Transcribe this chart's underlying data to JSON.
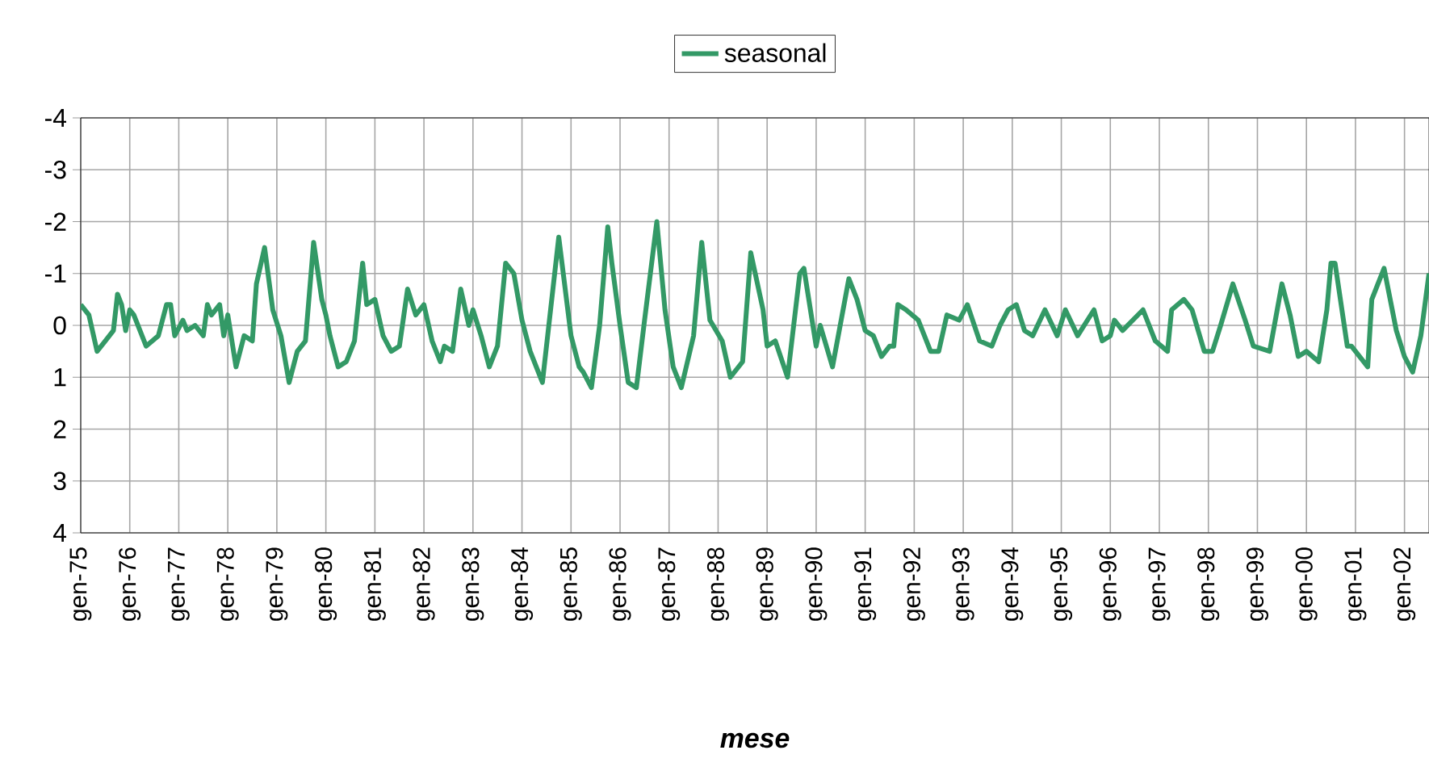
{
  "chart_data": {
    "type": "line",
    "xlabel": "mese",
    "x": [
      "1975-01",
      "1975-03",
      "1975-05",
      "1975-07",
      "1975-09",
      "1975-10",
      "1975-11",
      "1975-12",
      "1976-01",
      "1976-02",
      "1976-05",
      "1976-08",
      "1976-10",
      "1976-11",
      "1976-12",
      "1977-02",
      "1977-03",
      "1977-05",
      "1977-07",
      "1977-08",
      "1977-09",
      "1977-11",
      "1977-12",
      "1978-01",
      "1978-03",
      "1978-05",
      "1978-07",
      "1978-08",
      "1978-10",
      "1978-12",
      "1979-02",
      "1979-04",
      "1979-06",
      "1979-08",
      "1979-10",
      "1979-12",
      "1980-01",
      "1980-02",
      "1980-04",
      "1980-06",
      "1980-08",
      "1980-10",
      "1980-11",
      "1981-01",
      "1981-03",
      "1981-05",
      "1981-07",
      "1981-09",
      "1981-11",
      "1982-01",
      "1982-03",
      "1982-05",
      "1982-06",
      "1982-08",
      "1982-10",
      "1982-12",
      "1983-01",
      "1983-03",
      "1983-05",
      "1983-07",
      "1983-09",
      "1983-11",
      "1984-01",
      "1984-03",
      "1984-06",
      "1984-10",
      "1985-01",
      "1985-03",
      "1985-04",
      "1985-06",
      "1985-08",
      "1985-10",
      "1985-11",
      "1986-01",
      "1986-03",
      "1986-05",
      "1986-07",
      "1986-10",
      "1986-12",
      "1987-02",
      "1987-04",
      "1987-07",
      "1987-09",
      "1987-11",
      "1988-02",
      "1988-04",
      "1988-07",
      "1988-09",
      "1988-12",
      "1989-01",
      "1989-03",
      "1989-06",
      "1989-09",
      "1989-10",
      "1990-01",
      "1990-02",
      "1990-05",
      "1990-09",
      "1990-11",
      "1991-01",
      "1991-03",
      "1991-05",
      "1991-07",
      "1991-08",
      "1991-09",
      "1991-11",
      "1992-02",
      "1992-05",
      "1992-07",
      "1992-09",
      "1992-12",
      "1993-02",
      "1993-05",
      "1993-08",
      "1993-10",
      "1993-12",
      "1994-02",
      "1994-04",
      "1994-06",
      "1994-09",
      "1994-12",
      "1995-02",
      "1995-05",
      "1995-09",
      "1995-11",
      "1996-01",
      "1996-02",
      "1996-04",
      "1996-09",
      "1996-12",
      "1997-03",
      "1997-04",
      "1997-07",
      "1997-09",
      "1997-12",
      "1998-02",
      "1998-04",
      "1998-07",
      "1998-10",
      "1998-12",
      "1999-04",
      "1999-07",
      "1999-09",
      "1999-11",
      "2000-01",
      "2000-04",
      "2000-06",
      "2000-07",
      "2000-08",
      "2000-11",
      "2000-12",
      "2001-04",
      "2001-05",
      "2001-08",
      "2001-11",
      "2002-01",
      "2002-03",
      "2002-05",
      "2002-07"
    ],
    "series": [
      {
        "name": "seasonal",
        "color": "#339966",
        "values": [
          -0.4,
          -0.2,
          0.5,
          0.3,
          0.1,
          -0.6,
          -0.4,
          0.1,
          -0.3,
          -0.2,
          0.4,
          0.2,
          -0.4,
          -0.4,
          0.2,
          -0.1,
          0.1,
          0.0,
          0.2,
          -0.4,
          -0.2,
          -0.4,
          0.2,
          -0.2,
          0.8,
          0.2,
          0.3,
          -0.8,
          -1.5,
          -0.3,
          0.2,
          1.1,
          0.5,
          0.3,
          -1.6,
          -0.5,
          -0.2,
          0.2,
          0.8,
          0.7,
          0.3,
          -1.2,
          -0.4,
          -0.5,
          0.2,
          0.5,
          0.4,
          -0.7,
          -0.2,
          -0.4,
          0.3,
          0.7,
          0.4,
          0.5,
          -0.7,
          0.0,
          -0.3,
          0.2,
          0.8,
          0.4,
          -1.2,
          -1.0,
          -0.1,
          0.5,
          1.1,
          -1.7,
          0.2,
          0.8,
          0.9,
          1.2,
          0.0,
          -1.9,
          -1.2,
          0.0,
          1.1,
          1.2,
          -0.1,
          -2.0,
          -0.3,
          0.8,
          1.2,
          0.2,
          -1.6,
          -0.1,
          0.3,
          1.0,
          0.7,
          -1.4,
          -0.3,
          0.4,
          0.3,
          1.0,
          -1.0,
          -1.1,
          0.4,
          0.0,
          0.8,
          -0.9,
          -0.5,
          0.1,
          0.2,
          0.6,
          0.4,
          0.4,
          -0.4,
          -0.3,
          -0.1,
          0.5,
          0.5,
          -0.2,
          -0.1,
          -0.4,
          0.3,
          0.4,
          0.0,
          -0.3,
          -0.4,
          0.1,
          0.2,
          -0.3,
          0.2,
          -0.3,
          0.2,
          -0.3,
          0.3,
          0.2,
          -0.1,
          0.1,
          -0.3,
          0.3,
          0.5,
          -0.3,
          -0.5,
          -0.3,
          0.5,
          0.5,
          0.0,
          -0.8,
          -0.1,
          0.4,
          0.5,
          -0.8,
          -0.2,
          0.6,
          0.5,
          0.7,
          -0.3,
          -1.2,
          -1.2,
          0.4,
          0.4,
          0.8,
          -0.5,
          -1.1,
          0.1,
          0.6,
          0.9,
          0.2,
          -1.0
        ]
      }
    ],
    "xlim": [
      "1975-01",
      "2002-07"
    ],
    "xticks": [
      {
        "value": "1975-01",
        "label": "gen-75"
      },
      {
        "value": "1976-01",
        "label": "gen-76"
      },
      {
        "value": "1977-01",
        "label": "gen-77"
      },
      {
        "value": "1978-01",
        "label": "gen-78"
      },
      {
        "value": "1979-01",
        "label": "gen-79"
      },
      {
        "value": "1980-01",
        "label": "gen-80"
      },
      {
        "value": "1981-01",
        "label": "gen-81"
      },
      {
        "value": "1982-01",
        "label": "gen-82"
      },
      {
        "value": "1983-01",
        "label": "gen-83"
      },
      {
        "value": "1984-01",
        "label": "gen-84"
      },
      {
        "value": "1985-01",
        "label": "gen-85"
      },
      {
        "value": "1986-01",
        "label": "gen-86"
      },
      {
        "value": "1987-01",
        "label": "gen-87"
      },
      {
        "value": "1988-01",
        "label": "gen-88"
      },
      {
        "value": "1989-01",
        "label": "gen-89"
      },
      {
        "value": "1990-01",
        "label": "gen-90"
      },
      {
        "value": "1991-01",
        "label": "gen-91"
      },
      {
        "value": "1992-01",
        "label": "gen-92"
      },
      {
        "value": "1993-01",
        "label": "gen-93"
      },
      {
        "value": "1994-01",
        "label": "gen-94"
      },
      {
        "value": "1995-01",
        "label": "gen-95"
      },
      {
        "value": "1996-01",
        "label": "gen-96"
      },
      {
        "value": "1997-01",
        "label": "gen-97"
      },
      {
        "value": "1998-01",
        "label": "gen-98"
      },
      {
        "value": "1999-01",
        "label": "gen-99"
      },
      {
        "value": "2000-01",
        "label": "gen-00"
      },
      {
        "value": "2001-01",
        "label": "gen-01"
      },
      {
        "value": "2002-01",
        "label": "gen-02"
      }
    ],
    "ylim": [
      4,
      -4
    ],
    "yticks": [
      -4,
      -3,
      -2,
      -1,
      0,
      1,
      2,
      3,
      4
    ],
    "grid": true,
    "legend": "top",
    "line_style": "solid",
    "marker": "none"
  }
}
